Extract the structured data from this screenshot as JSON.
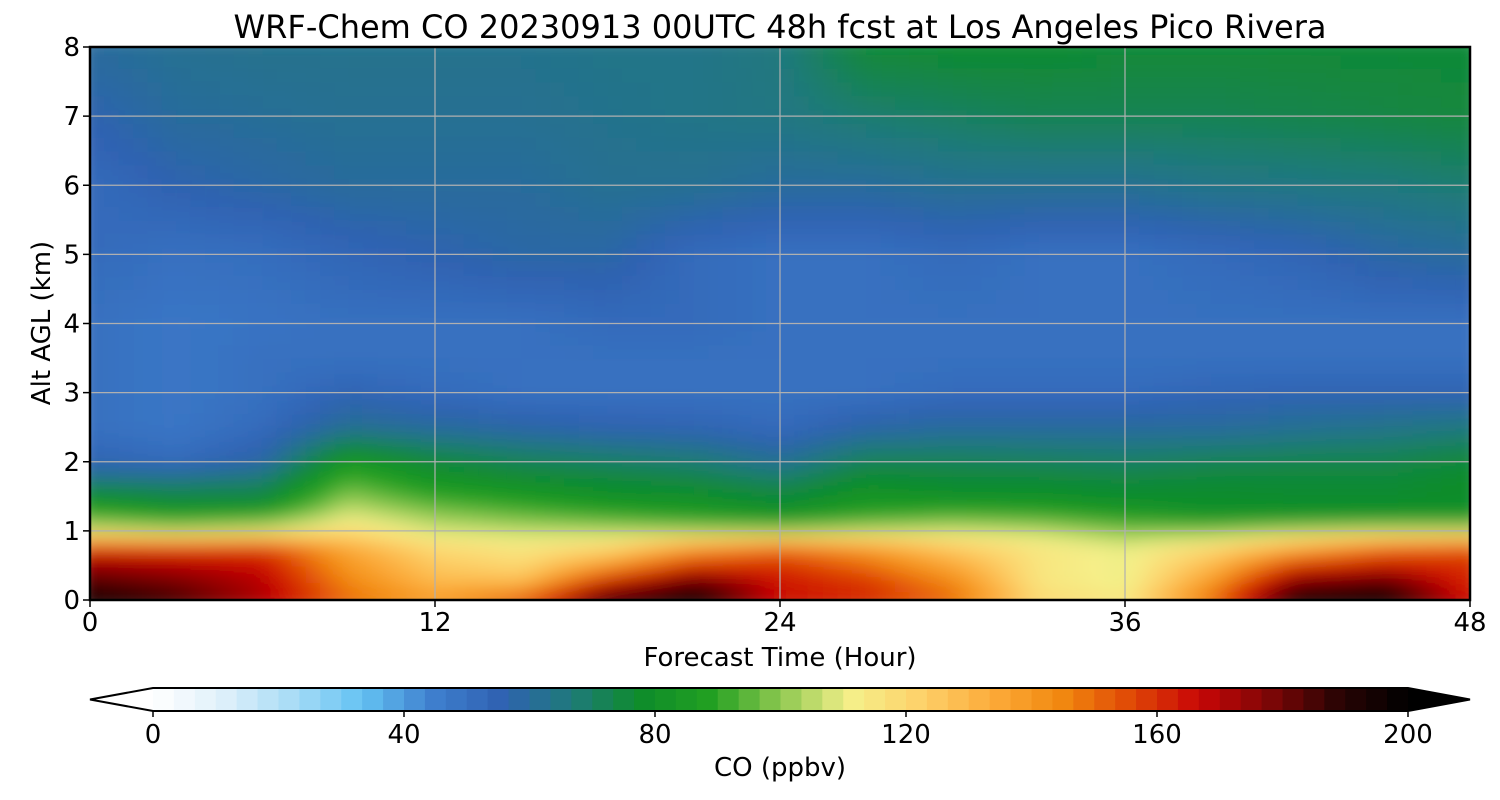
{
  "chart_data": {
    "type": "heatmap",
    "title": "WRF-Chem CO  20230913 00UTC 48h fcst at Los Angeles Pico Rivera",
    "xlabel": "Forecast Time (Hour)",
    "ylabel": "Alt AGL (km)",
    "xlim": [
      0,
      48
    ],
    "ylim": [
      0,
      8
    ],
    "xticks": [
      0,
      12,
      24,
      36,
      48
    ],
    "yticks": [
      0,
      1,
      2,
      3,
      4,
      5,
      6,
      7,
      8
    ],
    "grid": true,
    "colorbar": {
      "label": "CO  (ppbv)",
      "range": [
        0,
        200
      ],
      "ticks": [
        0,
        40,
        80,
        120,
        160,
        200
      ],
      "extend": "both",
      "orientation": "horizontal"
    },
    "hours": [
      0,
      3,
      6,
      9,
      12,
      15,
      18,
      21,
      24,
      27,
      30,
      33,
      36,
      39,
      42,
      45,
      48
    ],
    "altitudes_km": [
      0,
      0.25,
      0.5,
      0.75,
      1.0,
      1.25,
      1.5,
      1.75,
      2.0,
      2.5,
      3.0,
      3.5,
      4.0,
      5.0,
      6.0,
      7.0,
      8.0
    ],
    "values_ppbv": [
      [
        195,
        185,
        170,
        150,
        140,
        155,
        190,
        195,
        165,
        160,
        150,
        120,
        115,
        150,
        195,
        195,
        165
      ],
      [
        185,
        180,
        170,
        145,
        130,
        130,
        165,
        185,
        165,
        160,
        145,
        115,
        110,
        140,
        180,
        185,
        160
      ],
      [
        175,
        170,
        165,
        140,
        125,
        120,
        140,
        160,
        160,
        150,
        135,
        115,
        110,
        130,
        160,
        165,
        160
      ],
      [
        160,
        160,
        160,
        135,
        120,
        115,
        120,
        140,
        150,
        140,
        125,
        115,
        110,
        120,
        135,
        150,
        155
      ],
      [
        110,
        105,
        110,
        118,
        108,
        106,
        105,
        103,
        102,
        106,
        108,
        106,
        100,
        100,
        105,
        108,
        108
      ],
      [
        90,
        85,
        88,
        108,
        100,
        95,
        90,
        85,
        80,
        88,
        92,
        90,
        85,
        80,
        80,
        80,
        80
      ],
      [
        80,
        75,
        75,
        100,
        90,
        85,
        80,
        80,
        76,
        82,
        80,
        80,
        78,
        78,
        77,
        77,
        78
      ],
      [
        65,
        65,
        68,
        92,
        82,
        78,
        76,
        74,
        70,
        78,
        76,
        76,
        75,
        76,
        76,
        76,
        78
      ],
      [
        55,
        52,
        58,
        85,
        76,
        72,
        70,
        68,
        62,
        72,
        72,
        71,
        70,
        72,
        73,
        73,
        76
      ],
      [
        50,
        48,
        52,
        62,
        60,
        58,
        56,
        55,
        52,
        58,
        60,
        60,
        60,
        60,
        62,
        64,
        66
      ],
      [
        50,
        48,
        50,
        55,
        52,
        50,
        50,
        50,
        50,
        50,
        52,
        52,
        52,
        54,
        55,
        55,
        55
      ],
      [
        50,
        48,
        50,
        50,
        50,
        50,
        50,
        50,
        50,
        50,
        50,
        50,
        50,
        50,
        50,
        50,
        50
      ],
      [
        50,
        48,
        49,
        50,
        50,
        50,
        52,
        52,
        50,
        50,
        50,
        50,
        50,
        50,
        50,
        50,
        50
      ],
      [
        52,
        50,
        51,
        54,
        56,
        58,
        58,
        52,
        50,
        50,
        52,
        50,
        50,
        52,
        54,
        58,
        60
      ],
      [
        52,
        56,
        58,
        60,
        60,
        60,
        62,
        62,
        60,
        60,
        62,
        62,
        62,
        64,
        65,
        66,
        68
      ],
      [
        56,
        60,
        61,
        62,
        62,
        62,
        63,
        64,
        65,
        68,
        70,
        72,
        72,
        72,
        73,
        74,
        75
      ],
      [
        60,
        62,
        63,
        63,
        63,
        63,
        64,
        64,
        66,
        76,
        77,
        77,
        76,
        76,
        76,
        76,
        76
      ]
    ],
    "colorbar_colors": [
      "#ffffff",
      "#dff0fa",
      "#a8dcf6",
      "#64c2f2",
      "#3f7fce",
      "#2f62b2",
      "#1f7a7a",
      "#0e8c2a",
      "#22a022",
      "#8ec850",
      "#f5f08a",
      "#fdd16a",
      "#fcac3c",
      "#f28a10",
      "#e04a06",
      "#c80606",
      "#7e0606",
      "#2a0404",
      "#000000"
    ]
  }
}
